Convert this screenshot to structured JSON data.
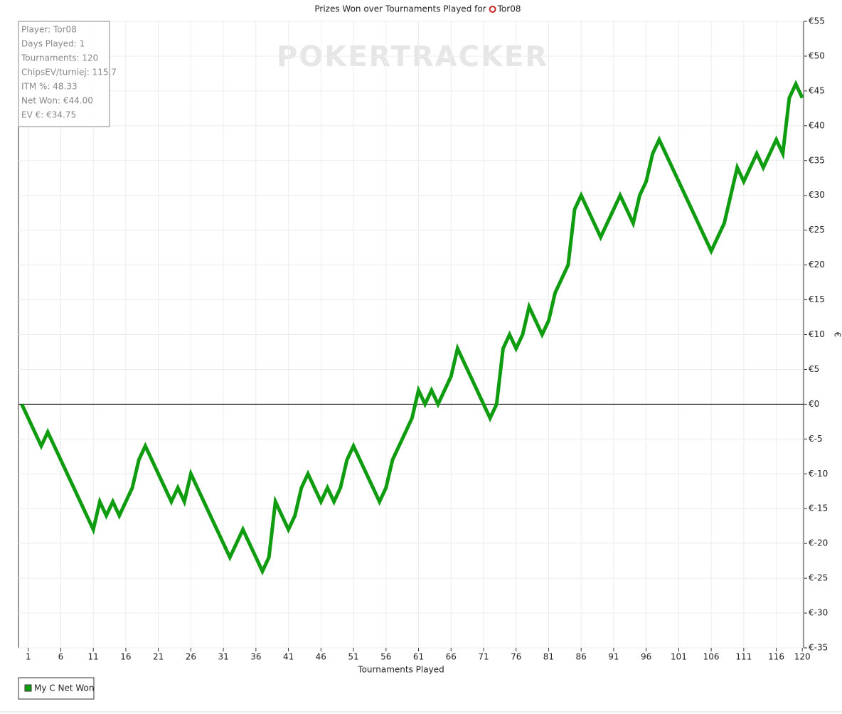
{
  "chart_data": {
    "type": "line",
    "title": "Prizes Won over Tournaments Played for",
    "title_player": "Tor08",
    "watermark": "POKERTRACKER",
    "stats": [
      "Player: Tor08",
      "Days Played: 1",
      "Tournaments: 120",
      "ChipsEV/turniej: 115.7",
      "ITM %: 48.33",
      "Net Won: €44.00",
      "EV €: €34.75"
    ],
    "x_label": "Tournaments Played",
    "y_label": "€",
    "x": [
      0,
      1,
      2,
      3,
      4,
      5,
      6,
      7,
      8,
      9,
      10,
      11,
      12,
      13,
      14,
      15,
      16,
      17,
      18,
      19,
      20,
      21,
      22,
      23,
      24,
      25,
      26,
      27,
      28,
      29,
      30,
      31,
      32,
      33,
      34,
      35,
      36,
      37,
      38,
      39,
      40,
      41,
      42,
      43,
      44,
      45,
      46,
      47,
      48,
      49,
      50,
      51,
      52,
      53,
      54,
      55,
      56,
      57,
      58,
      59,
      60,
      61,
      62,
      63,
      64,
      65,
      66,
      67,
      68,
      69,
      70,
      71,
      72,
      73,
      74,
      75,
      76,
      77,
      78,
      79,
      80,
      81,
      82,
      83,
      84,
      85,
      86,
      87,
      88,
      89,
      90,
      91,
      92,
      93,
      94,
      95,
      96,
      97,
      98,
      99,
      100,
      101,
      102,
      103,
      104,
      105,
      106,
      107,
      108,
      109,
      110,
      111,
      112,
      113,
      114,
      115,
      116,
      117,
      118,
      119,
      120
    ],
    "series": [
      {
        "name": "My C Net Won",
        "color": "#109c10",
        "values": [
          0,
          -2,
          -4,
          -6,
          -4,
          -6,
          -8,
          -10,
          -12,
          -14,
          -16,
          -18,
          -14,
          -16,
          -14,
          -16,
          -14,
          -12,
          -8,
          -6,
          -8,
          -10,
          -12,
          -14,
          -12,
          -14,
          -10,
          -12,
          -14,
          -16,
          -18,
          -20,
          -22,
          -20,
          -18,
          -20,
          -22,
          -24,
          -22,
          -14,
          -16,
          -18,
          -16,
          -12,
          -10,
          -12,
          -14,
          -12,
          -14,
          -12,
          -8,
          -6,
          -8,
          -10,
          -12,
          -14,
          -12,
          -8,
          -6,
          -4,
          -2,
          2,
          0,
          2,
          0,
          2,
          4,
          8,
          6,
          4,
          2,
          0,
          -2,
          0,
          8,
          10,
          8,
          10,
          14,
          12,
          10,
          12,
          16,
          18,
          20,
          28,
          30,
          28,
          26,
          24,
          26,
          28,
          30,
          28,
          26,
          30,
          32,
          36,
          38,
          36,
          34,
          32,
          30,
          28,
          26,
          24,
          22,
          24,
          26,
          30,
          34,
          32,
          34,
          36,
          34,
          36,
          38,
          36,
          44,
          46,
          44
        ]
      }
    ],
    "xlim": [
      -0.5,
      120.2
    ],
    "xticks": [
      1,
      6,
      11,
      16,
      21,
      26,
      31,
      36,
      41,
      46,
      51,
      56,
      61,
      66,
      71,
      76,
      81,
      86,
      91,
      96,
      101,
      106,
      111,
      116,
      120
    ],
    "ylim": [
      -35,
      55
    ],
    "yticks": [
      {
        "value": 55,
        "label": "€55"
      },
      {
        "value": 50,
        "label": "€50"
      },
      {
        "value": 45,
        "label": "€45"
      },
      {
        "value": 40,
        "label": "€40"
      },
      {
        "value": 35,
        "label": "€35"
      },
      {
        "value": 30,
        "label": "€30"
      },
      {
        "value": 25,
        "label": "€25"
      },
      {
        "value": 20,
        "label": "€20"
      },
      {
        "value": 15,
        "label": "€15"
      },
      {
        "value": 10,
        "label": "€10"
      },
      {
        "value": 5,
        "label": "€5"
      },
      {
        "value": 0,
        "label": "€0"
      },
      {
        "value": -5,
        "label": "€-5"
      },
      {
        "value": -10,
        "label": "€-10"
      },
      {
        "value": -15,
        "label": "€-15"
      },
      {
        "value": -20,
        "label": "€-20"
      },
      {
        "value": -25,
        "label": "€-25"
      },
      {
        "value": -30,
        "label": "€-30"
      },
      {
        "value": -35,
        "label": "€-35"
      }
    ],
    "grid": true
  }
}
